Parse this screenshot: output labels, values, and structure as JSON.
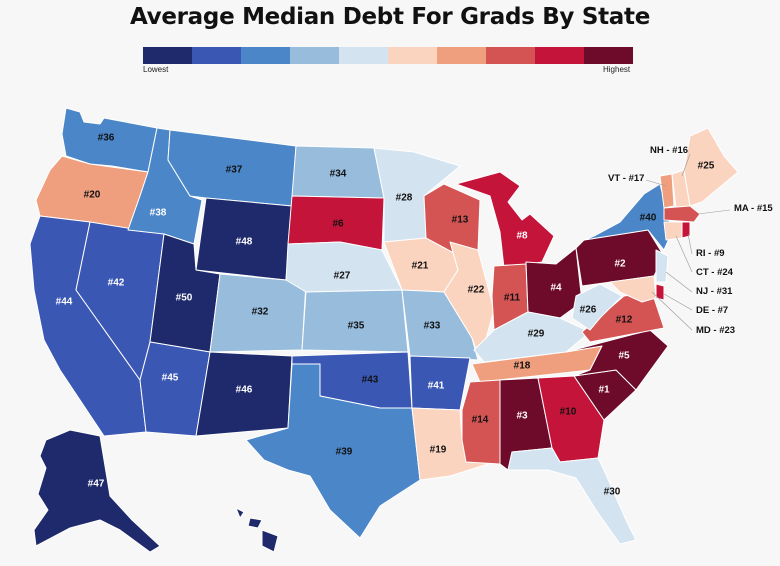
{
  "title": "Average Median Debt For Grads By State",
  "legend": {
    "low_label": "Lowest",
    "high_label": "Highest",
    "colors": [
      "#1e2a6b",
      "#3a57b3",
      "#4a86c8",
      "#97bcdc",
      "#d3e3f0",
      "#fbd4c0",
      "#ef9f7e",
      "#d45454",
      "#c4143a",
      "#6e0a2a"
    ]
  },
  "states": {
    "WA": "#36",
    "OR": "#20",
    "CA": "#44",
    "NV": "#42",
    "ID": "#38",
    "MT": "#37",
    "WY": "#48",
    "UT": "#50",
    "AZ": "#45",
    "CO": "#32",
    "NM": "#46",
    "ND": "#34",
    "SD": "#6",
    "NE": "#27",
    "KS": "#35",
    "OK": "#43",
    "TX": "#39",
    "MN": "#28",
    "IA": "#21",
    "MO": "#33",
    "AR": "#41",
    "LA": "#19",
    "WI": "#13",
    "IL": "#22",
    "MI": "#8",
    "IN": "#11",
    "OH": "#4",
    "KY": "#29",
    "TN": "#18",
    "MS": "#14",
    "AL": "#3",
    "GA": "#10",
    "FL": "#30",
    "SC": "#1",
    "NC": "#5",
    "VA": "#12",
    "WV": "#26",
    "PA": "#2",
    "NY": "#40",
    "ME": "#25",
    "AK": "#47"
  },
  "callouts": {
    "NH": "NH - #16",
    "VT": "VT - #17",
    "MA": "MA - #15",
    "RI": "RI - #9",
    "CT": "CT - #24",
    "NJ": "NJ - #31",
    "DE": "DE - #7",
    "MD": "MD - #23"
  }
}
